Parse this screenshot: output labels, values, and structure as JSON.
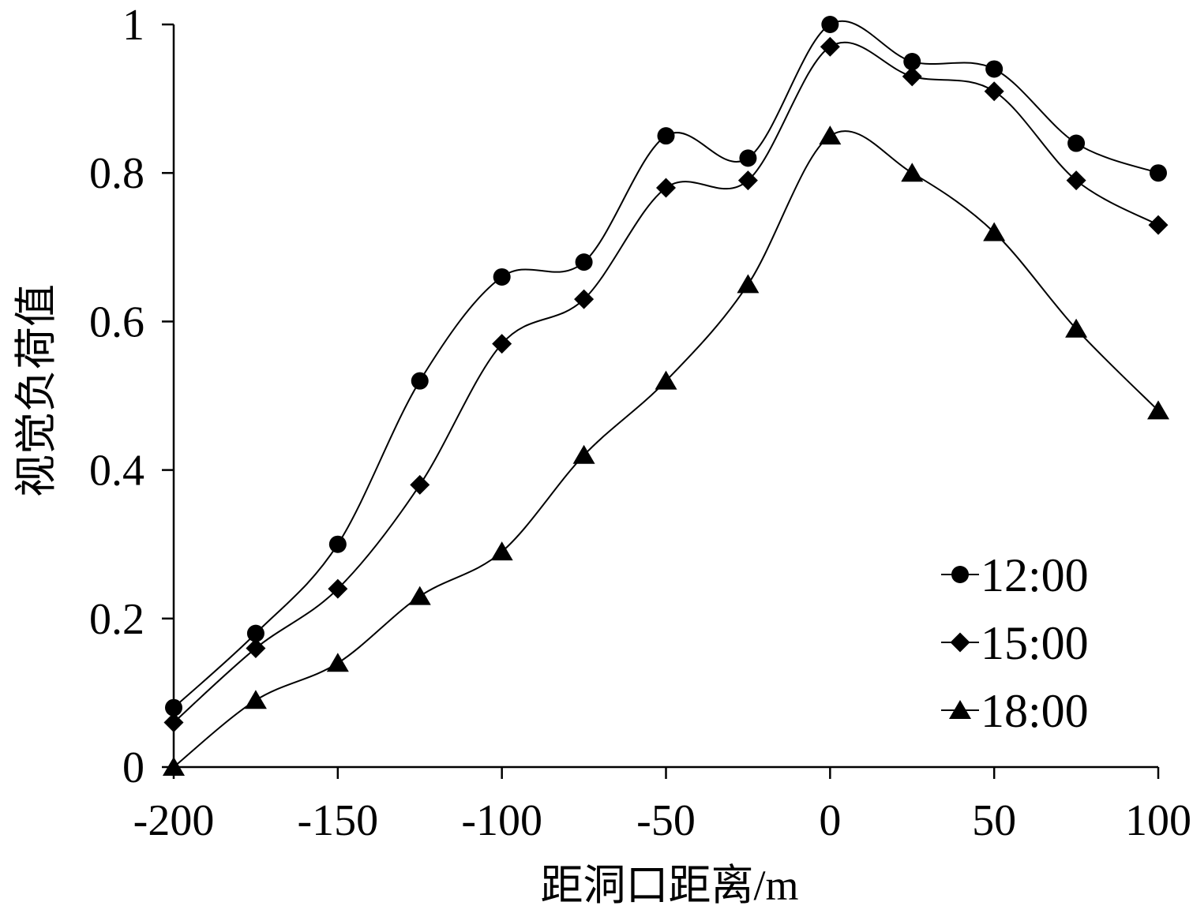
{
  "chart_data": {
    "type": "line",
    "smooth": true,
    "x": [
      -200,
      -175,
      -150,
      -125,
      -100,
      -75,
      -50,
      -25,
      0,
      25,
      50,
      75,
      100
    ],
    "series": [
      {
        "name": "12:00",
        "marker": "circle",
        "values": [
          0.08,
          0.18,
          0.3,
          0.52,
          0.66,
          0.68,
          0.85,
          0.82,
          1.0,
          0.95,
          0.94,
          0.84,
          0.8
        ]
      },
      {
        "name": "15:00",
        "marker": "diamond",
        "values": [
          0.06,
          0.16,
          0.24,
          0.38,
          0.57,
          0.63,
          0.78,
          0.79,
          0.97,
          0.93,
          0.91,
          0.79,
          0.73
        ]
      },
      {
        "name": "18:00",
        "marker": "triangle",
        "values": [
          0.0,
          0.09,
          0.14,
          0.23,
          0.29,
          0.42,
          0.52,
          0.65,
          0.85,
          0.8,
          0.72,
          0.59,
          0.48
        ]
      }
    ],
    "xlabel": "距洞口距离/m",
    "ylabel": "视觉负荷值",
    "xlim": [
      -200,
      100
    ],
    "ylim": [
      0,
      1
    ],
    "xticks": [
      -200,
      -150,
      -100,
      -50,
      0,
      50,
      100
    ],
    "xtick_labels": [
      "-200",
      "-150",
      "-100",
      "-50",
      "0",
      "50",
      "100"
    ],
    "yticks": [
      0,
      0.2,
      0.4,
      0.6,
      0.8,
      1
    ],
    "ytick_labels": [
      "0",
      "0.2",
      "0.4",
      "0.6",
      "0.8",
      "1"
    ],
    "grid": false,
    "legend": "bottom-right",
    "line_color": "#000000"
  }
}
